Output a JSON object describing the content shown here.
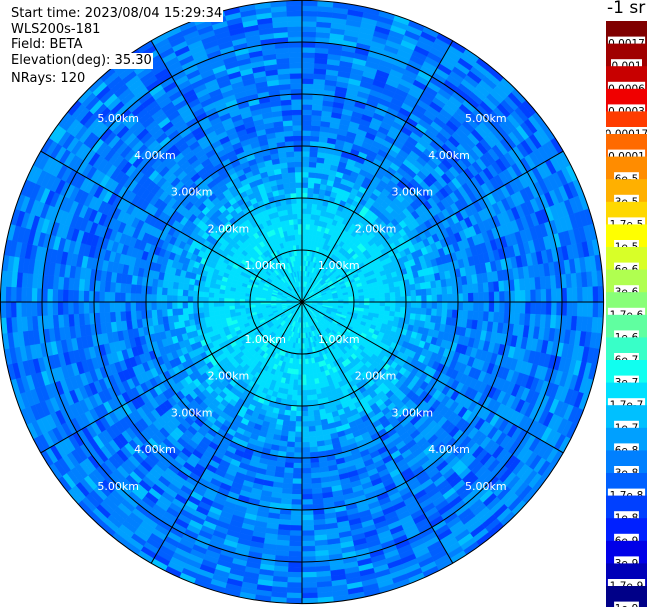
{
  "header": {
    "start_time": "Start time: 2023/08/04 15:29:34",
    "instrument": "WLS200s-181",
    "field": "Field: BETA",
    "elevation": "Elevation(deg): 35.30",
    "nrays": "NRays: 120"
  },
  "colorbar": {
    "unit_label": "-1 sr",
    "levels": [
      {
        "label": "0.0017",
        "color": "#800000"
      },
      {
        "label": "0.001",
        "color": "#a00000"
      },
      {
        "label": "0.0006",
        "color": "#c80000"
      },
      {
        "label": "0.0003",
        "color": "#f00000"
      },
      {
        "label": "0.00017",
        "color": "#ff3c00"
      },
      {
        "label": "0.0001",
        "color": "#ff6a00"
      },
      {
        "label": "6e-5",
        "color": "#ff8c00"
      },
      {
        "label": "3e-5",
        "color": "#ffb000"
      },
      {
        "label": "1.7e-5",
        "color": "#ffd800"
      },
      {
        "label": "1e-5",
        "color": "#ffff00"
      },
      {
        "label": "6e-6",
        "color": "#d8ff28"
      },
      {
        "label": "3e-6",
        "color": "#b0ff50"
      },
      {
        "label": "1.7e-6",
        "color": "#88ff78"
      },
      {
        "label": "1e-6",
        "color": "#60ffa0"
      },
      {
        "label": "6e-7",
        "color": "#38ffc8"
      },
      {
        "label": "3e-7",
        "color": "#10fff0"
      },
      {
        "label": "1.7e-7",
        "color": "#00e0ff"
      },
      {
        "label": "1e-7",
        "color": "#00c0ff"
      },
      {
        "label": "6e-8",
        "color": "#00a0ff"
      },
      {
        "label": "3e-8",
        "color": "#0080ff"
      },
      {
        "label": "1.7e-8",
        "color": "#0060ff"
      },
      {
        "label": "1e-8",
        "color": "#0040ff"
      },
      {
        "label": "6e-9",
        "color": "#0020ff"
      },
      {
        "label": "3e-9",
        "color": "#0000e8"
      },
      {
        "label": "1.7e-9",
        "color": "#0000b8"
      },
      {
        "label": "1e-9",
        "color": "#000088"
      }
    ]
  },
  "chart_data": {
    "type": "heatmap",
    "projection": "polar-ppi",
    "field": "BETA",
    "elevation_deg": 35.3,
    "nrays": 120,
    "range_rings_km": [
      1,
      2,
      3,
      4,
      5
    ],
    "range_ring_labels": [
      "1.00km",
      "2.00km",
      "3.00km",
      "4.00km",
      "5.00km"
    ],
    "max_range_km": 5.8,
    "azimuth_spokes_deg": [
      0,
      30,
      60,
      90,
      120,
      150,
      180,
      210,
      240,
      270,
      300,
      330
    ],
    "radial_profile": [
      {
        "range_km": 0.2,
        "value": 1.7e-07
      },
      {
        "range_km": 0.5,
        "value": 1.7e-07
      },
      {
        "range_km": 1.0,
        "value": 1.7e-07
      },
      {
        "range_km": 1.5,
        "value": 1.7e-07
      },
      {
        "range_km": 2.0,
        "value": 1e-07
      },
      {
        "range_km": 2.5,
        "value": 6e-08
      },
      {
        "range_km": 3.0,
        "value": 3e-08
      },
      {
        "range_km": 4.0,
        "value": 3e-08
      },
      {
        "range_km": 5.0,
        "value": 3e-08
      },
      {
        "range_km": 5.8,
        "value": 3e-08
      }
    ]
  }
}
